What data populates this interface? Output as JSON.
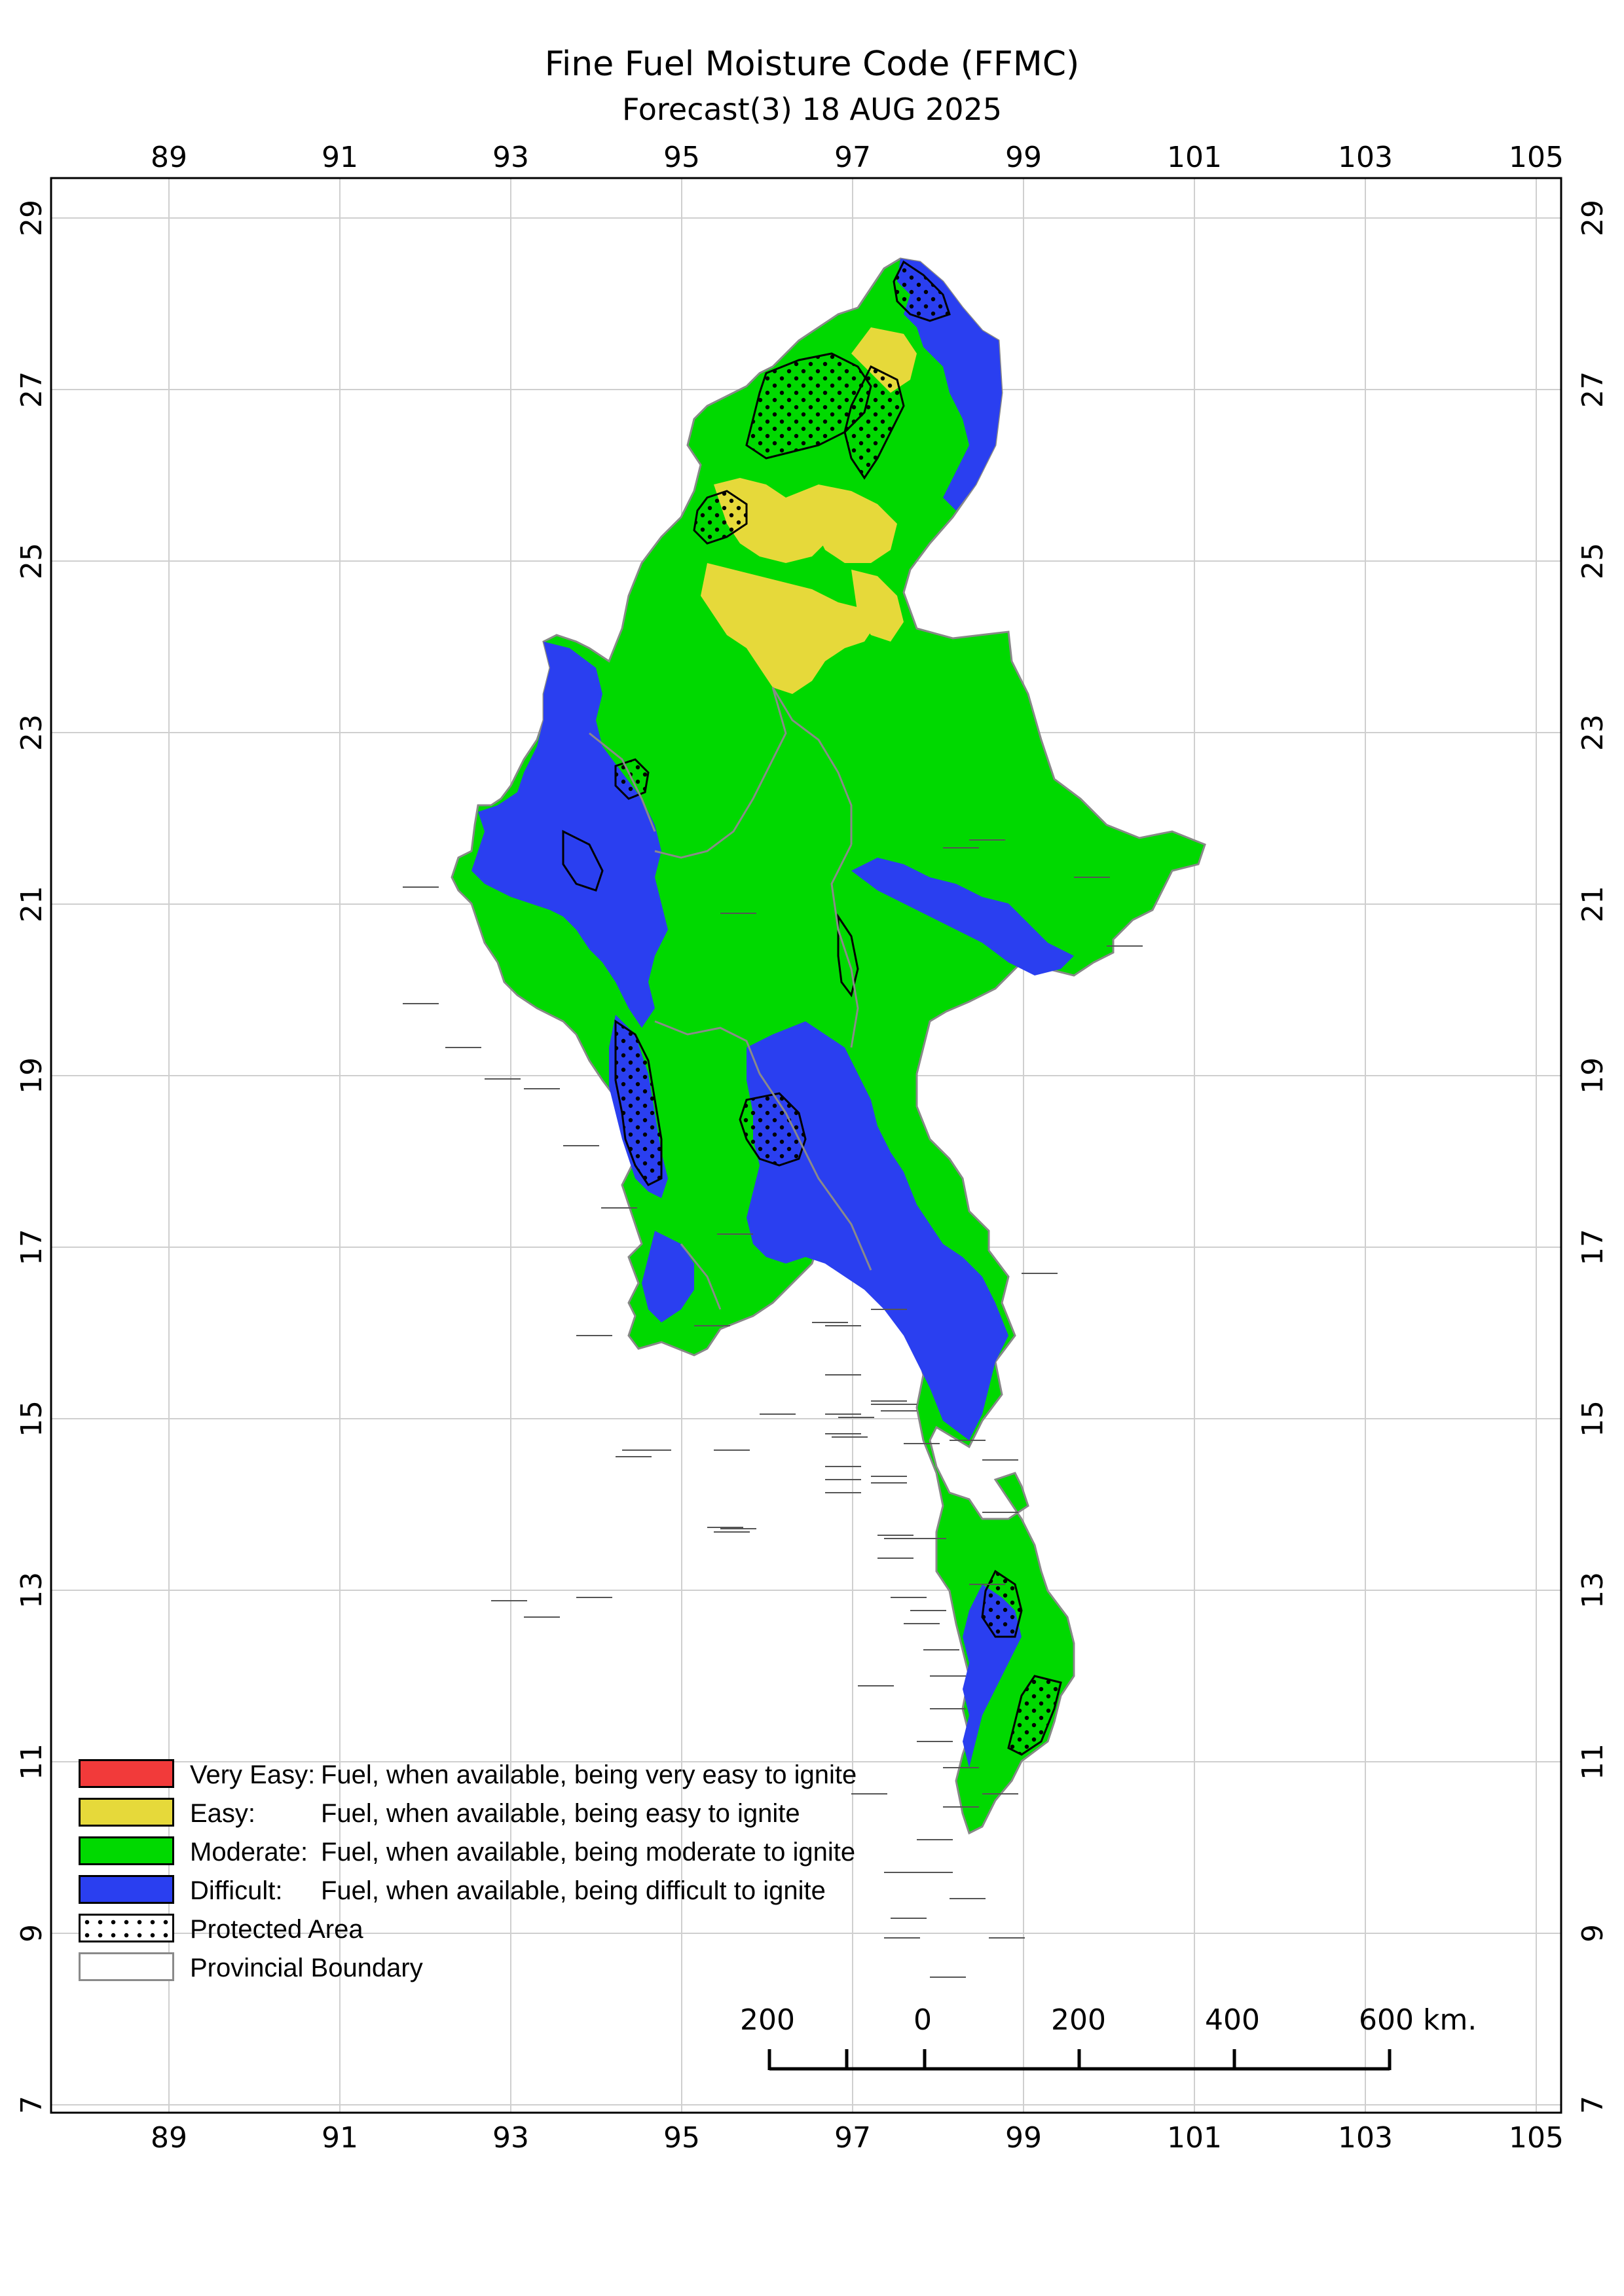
{
  "title": "Fine Fuel Moisture Code (FFMC)",
  "subtitle": "Forecast(3) 18 AUG 2025",
  "axes": {
    "lon_ticks": [
      "89",
      "91",
      "93",
      "95",
      "97",
      "99",
      "101",
      "103",
      "105"
    ],
    "lat_ticks": [
      "29",
      "27",
      "25",
      "23",
      "21",
      "19",
      "17",
      "15",
      "13",
      "11",
      "9",
      "7"
    ]
  },
  "colors": {
    "very_easy": "#f23a3a",
    "easy": "#e6d93a",
    "moderate": "#00d900",
    "difficult": "#2a3ff0",
    "boundary": "#8a8a8a",
    "grid": "#c8c8c8"
  },
  "legend": [
    {
      "key": "very_easy",
      "label": "Very Easy:",
      "desc": "Fuel, when available, being very easy to ignite"
    },
    {
      "key": "easy",
      "label": "Easy:",
      "desc": "Fuel, when available, being easy to ignite"
    },
    {
      "key": "moderate",
      "label": "Moderate:",
      "desc": "Fuel, when available, being moderate to ignite"
    },
    {
      "key": "difficult",
      "label": "Difficult:",
      "desc": "Fuel, when available, being difficult to ignite"
    },
    {
      "key": "protected",
      "label": "Protected Area",
      "desc": ""
    },
    {
      "key": "boundary",
      "label": "Provincial Boundary",
      "desc": ""
    }
  ],
  "scale_bar": {
    "labels": [
      "200",
      "0",
      "200",
      "400",
      "600 km."
    ]
  }
}
